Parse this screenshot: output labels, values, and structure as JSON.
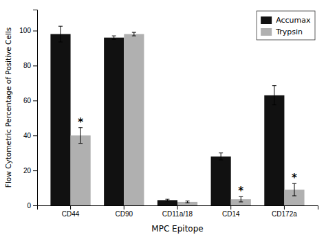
{
  "chart_data": {
    "type": "bar",
    "xlabel": "MPC Epitope",
    "ylabel": "Flow Cytometric Percentage of Positive Cells",
    "categories": [
      "CD44",
      "CD90",
      "CD11a/18",
      "CD14",
      "CD172a"
    ],
    "series": [
      {
        "name": "Accumax",
        "color": "#111111",
        "values": [
          98,
          96,
          3,
          28,
          63
        ],
        "errors": [
          4.5,
          1.0,
          0.5,
          2.0,
          5.5
        ]
      },
      {
        "name": "Trypsin",
        "color": "#b0b0b0",
        "values": [
          40,
          98,
          2,
          3.5,
          9
        ],
        "errors": [
          4.5,
          1.0,
          0.5,
          1.5,
          3.5
        ]
      }
    ],
    "annotations": [
      {
        "text": "*",
        "category": "CD44",
        "series": "Trypsin"
      },
      {
        "text": "*",
        "category": "CD14",
        "series": "Trypsin"
      },
      {
        "text": "*",
        "category": "CD172a",
        "series": "Trypsin"
      }
    ],
    "ylim": [
      0,
      112
    ],
    "yticks": [
      0,
      20,
      40,
      60,
      80,
      100
    ],
    "grid": false,
    "legend": "upper right"
  }
}
